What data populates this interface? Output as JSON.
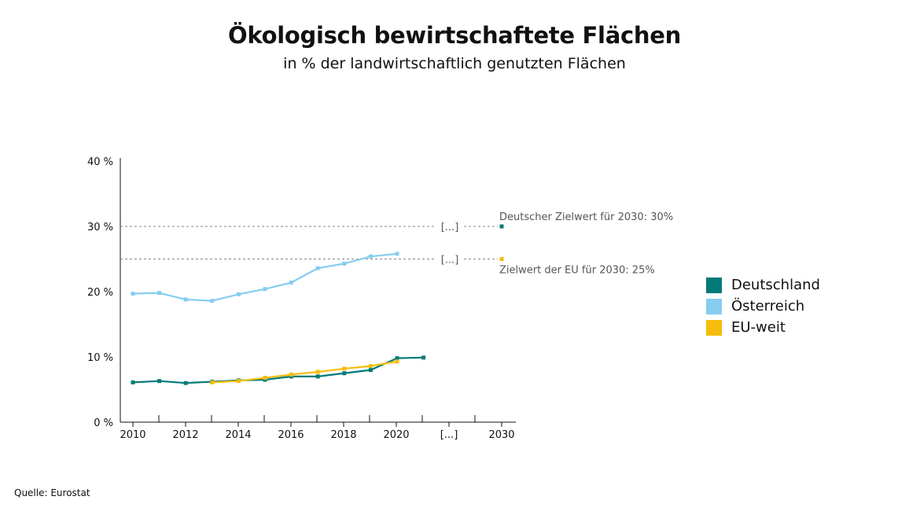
{
  "chart_data": {
    "type": "line",
    "title": "Ökologisch bewirtschaftete Flächen",
    "subtitle": "in % der landwirtschaftlich genutzten Flächen",
    "x_tick_labels": [
      "2010",
      "2012",
      "2014",
      "2016",
      "2018",
      "2020",
      "[...]",
      "2030"
    ],
    "y_tick_labels": [
      "0 %",
      "10 %",
      "20 %",
      "30 %",
      "40 %"
    ],
    "ylim": [
      0,
      40
    ],
    "grid": false,
    "legend_position": "right",
    "series": [
      {
        "name": "Deutschland",
        "color": "#007a78",
        "x": [
          2010,
          2011,
          2012,
          2013,
          2014,
          2015,
          2016,
          2017,
          2018,
          2019,
          2020,
          2021
        ],
        "values": [
          6.1,
          6.3,
          6.0,
          6.2,
          6.4,
          6.5,
          7.0,
          7.0,
          7.5,
          8.0,
          9.8,
          9.9
        ]
      },
      {
        "name": "Österreich",
        "color": "#87cdef",
        "x": [
          2010,
          2011,
          2012,
          2013,
          2014,
          2015,
          2016,
          2017,
          2018,
          2019,
          2020
        ],
        "values": [
          19.7,
          19.8,
          18.8,
          18.6,
          19.6,
          20.4,
          21.4,
          23.6,
          24.3,
          25.4,
          25.8
        ]
      },
      {
        "name": "EU-weit",
        "color": "#f5bd0d",
        "x": [
          2013,
          2014,
          2015,
          2016,
          2017,
          2018,
          2019,
          2020
        ],
        "values": [
          6.1,
          6.3,
          6.8,
          7.3,
          7.7,
          8.2,
          8.6,
          9.3
        ]
      }
    ],
    "targets": [
      {
        "label": "Deutscher Zielwert für 2030: 30%",
        "value": 30,
        "color": "#007a78",
        "gap_label": "[...]"
      },
      {
        "label": "Zielwert der EU für 2030: 25%",
        "value": 25,
        "color": "#f5bd0d",
        "gap_label": "[...]"
      }
    ]
  },
  "source": "Quelle: Eurostat"
}
